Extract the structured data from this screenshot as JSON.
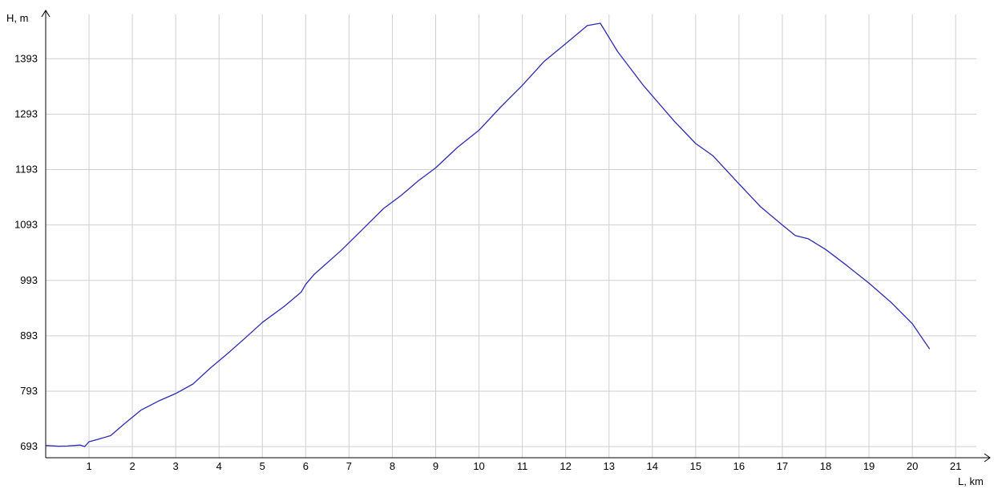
{
  "chart_data": {
    "type": "line",
    "xlabel": "L, km",
    "ylabel": "H, m",
    "xlim": [
      0,
      21.7
    ],
    "ylim": [
      673,
      1473
    ],
    "x_ticks": [
      1,
      2,
      3,
      4,
      5,
      6,
      7,
      8,
      9,
      10,
      11,
      12,
      13,
      14,
      15,
      16,
      17,
      18,
      19,
      20,
      21
    ],
    "y_ticks": [
      693,
      793,
      893,
      993,
      1093,
      1193,
      1293,
      1393
    ],
    "grid": true,
    "colors": {
      "line": "#2b2bb0",
      "grid": "#cfcfcf",
      "axis": "#000000"
    },
    "series": [
      {
        "x": [
          0,
          0.3,
          0.5,
          0.8,
          0.9,
          1.0,
          1.2,
          1.5,
          1.8,
          2.2,
          2.6,
          3.0,
          3.4,
          3.8,
          4.2,
          4.6,
          5.0,
          5.5,
          5.9,
          6.0,
          6.2,
          6.8,
          7.3,
          7.8,
          8.2,
          8.6,
          9.0,
          9.5,
          10.0,
          10.5,
          11.0,
          11.5,
          12.0,
          12.5,
          12.8,
          13.2,
          13.8,
          14.5,
          15.0,
          15.4,
          16.0,
          16.5,
          17.0,
          17.3,
          17.6,
          18.0,
          18.5,
          19.0,
          19.5,
          20.0,
          20.4
        ],
        "y": [
          696,
          693,
          695,
          695,
          694,
          701,
          707,
          712,
          734,
          758,
          776,
          788,
          807,
          834,
          862,
          888,
          918,
          945,
          973,
          985,
          1005,
          1045,
          1085,
          1122,
          1147,
          1172,
          1197,
          1232,
          1265,
          1305,
          1346,
          1387,
          1421,
          1452,
          1458,
          1405,
          1345,
          1280,
          1241,
          1217,
          1168,
          1125,
          1094,
          1073,
          1069,
          1048,
          1020,
          987,
          955,
          914,
          870
        ]
      }
    ]
  }
}
